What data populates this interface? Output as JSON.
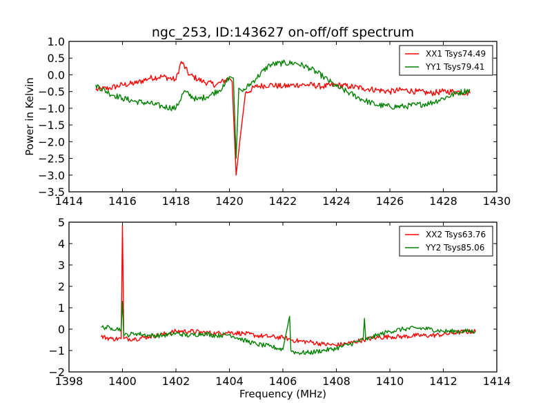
{
  "chart_data": [
    {
      "type": "line",
      "title": "ngc_253, ID:143627 on-off/off spectrum",
      "xlabel": "",
      "ylabel": "Power in Kelvin",
      "xlim": [
        1414,
        1430
      ],
      "ylim": [
        -3.5,
        1.0
      ],
      "xticks": [
        "1414",
        "1416",
        "1418",
        "1420",
        "1422",
        "1424",
        "1426",
        "1428",
        "1430"
      ],
      "yticks": [
        "1.0",
        "0.5",
        "0.0",
        "−0.5",
        "−1.0",
        "−1.5",
        "−2.0",
        "−2.5",
        "−3.0",
        "−3.5"
      ],
      "ytick_values": [
        1.0,
        0.5,
        0.0,
        -0.5,
        -1.0,
        -1.5,
        -2.0,
        -2.5,
        -3.0,
        -3.5
      ],
      "xtick_values": [
        1414,
        1416,
        1418,
        1420,
        1422,
        1424,
        1426,
        1428,
        1430
      ],
      "legend_position": "top-right",
      "grid": false,
      "series": [
        {
          "name": "XX1 Tsys74.49",
          "color": "#ff0000",
          "x": [
            1415.0,
            1415.5,
            1416.0,
            1416.5,
            1417.0,
            1417.5,
            1418.0,
            1418.2,
            1418.5,
            1419.0,
            1419.5,
            1420.0,
            1420.1,
            1420.25,
            1420.4,
            1420.6,
            1421.0,
            1421.5,
            1422.0,
            1422.5,
            1423.0,
            1423.5,
            1424.0,
            1424.5,
            1425.0,
            1425.5,
            1426.0,
            1426.5,
            1427.0,
            1427.5,
            1428.0,
            1428.5,
            1429.0
          ],
          "y": [
            -0.45,
            -0.4,
            -0.3,
            -0.25,
            -0.1,
            -0.05,
            -0.15,
            0.4,
            0.0,
            -0.2,
            -0.3,
            -0.1,
            -0.2,
            -3.0,
            -1.9,
            -0.55,
            -0.35,
            -0.3,
            -0.35,
            -0.3,
            -0.3,
            -0.35,
            -0.3,
            -0.35,
            -0.4,
            -0.45,
            -0.5,
            -0.45,
            -0.5,
            -0.55,
            -0.5,
            -0.5,
            -0.55
          ]
        },
        {
          "name": "YY1 Tsys79.41",
          "color": "#008000",
          "x": [
            1415.0,
            1415.5,
            1416.0,
            1416.5,
            1417.0,
            1417.5,
            1418.0,
            1418.3,
            1418.8,
            1419.3,
            1419.8,
            1420.0,
            1420.15,
            1420.25,
            1420.35,
            1420.5,
            1421.0,
            1421.5,
            1422.0,
            1422.5,
            1423.0,
            1423.5,
            1424.0,
            1424.5,
            1425.0,
            1425.5,
            1426.0,
            1426.5,
            1427.0,
            1427.5,
            1428.0,
            1428.5,
            1429.0
          ],
          "y": [
            -0.3,
            -0.55,
            -0.7,
            -0.8,
            -0.85,
            -0.95,
            -1.0,
            -0.5,
            -0.75,
            -0.6,
            -0.35,
            -0.05,
            -0.1,
            -2.5,
            -0.4,
            -0.5,
            -0.1,
            0.3,
            0.35,
            0.35,
            0.2,
            -0.05,
            -0.35,
            -0.55,
            -0.75,
            -0.9,
            -0.95,
            -0.95,
            -0.9,
            -0.85,
            -0.7,
            -0.55,
            -0.45
          ]
        }
      ]
    },
    {
      "type": "line",
      "title": "",
      "xlabel": "Frequency (MHz)",
      "ylabel": "",
      "xlim": [
        1398,
        1414
      ],
      "ylim": [
        -2,
        5
      ],
      "xticks": [
        "1398",
        "1400",
        "1402",
        "1404",
        "1406",
        "1408",
        "1410",
        "1412",
        "1414"
      ],
      "yticks": [
        "5",
        "4",
        "3",
        "2",
        "1",
        "0",
        "−1",
        "−2"
      ],
      "ytick_values": [
        5,
        4,
        3,
        2,
        1,
        0,
        -1,
        -2
      ],
      "xtick_values": [
        1398,
        1400,
        1402,
        1404,
        1406,
        1408,
        1410,
        1412,
        1414
      ],
      "legend_position": "top-right",
      "grid": false,
      "series": [
        {
          "name": "XX2 Tsys63.76",
          "color": "#ff0000",
          "x": [
            1399.2,
            1399.6,
            1399.95,
            1400.0,
            1400.05,
            1400.5,
            1401.0,
            1401.5,
            1402.0,
            1402.5,
            1403.0,
            1403.5,
            1404.0,
            1404.5,
            1405.0,
            1405.5,
            1406.0,
            1406.5,
            1407.0,
            1407.5,
            1408.0,
            1408.5,
            1409.0,
            1409.5,
            1410.0,
            1410.5,
            1411.0,
            1411.5,
            1412.0,
            1412.5,
            1413.2
          ],
          "y": [
            -0.35,
            -0.45,
            -0.45,
            4.85,
            -0.45,
            -0.45,
            -0.35,
            -0.25,
            -0.1,
            -0.1,
            -0.15,
            -0.2,
            -0.15,
            -0.2,
            -0.3,
            -0.35,
            -0.4,
            -0.55,
            -0.6,
            -0.7,
            -0.75,
            -0.65,
            -0.5,
            -0.4,
            -0.35,
            -0.35,
            -0.3,
            -0.3,
            -0.25,
            -0.15,
            -0.1
          ]
        },
        {
          "name": "YY2 Tsys85.06",
          "color": "#008000",
          "x": [
            1399.2,
            1399.6,
            1399.95,
            1400.0,
            1400.05,
            1400.5,
            1401.0,
            1401.5,
            1402.0,
            1402.5,
            1403.0,
            1403.5,
            1404.0,
            1404.5,
            1405.0,
            1405.5,
            1406.0,
            1406.25,
            1406.3,
            1406.5,
            1407.0,
            1407.5,
            1408.0,
            1408.5,
            1409.0,
            1409.05,
            1409.1,
            1409.5,
            1410.0,
            1410.5,
            1411.0,
            1411.5,
            1412.0,
            1412.5,
            1413.2
          ],
          "y": [
            0.1,
            0.05,
            0.0,
            1.3,
            -0.3,
            -0.2,
            -0.3,
            -0.3,
            -0.2,
            -0.3,
            -0.2,
            -0.3,
            -0.25,
            -0.5,
            -0.7,
            -0.8,
            -0.95,
            0.6,
            -1.0,
            -1.1,
            -1.1,
            -1.0,
            -0.9,
            -0.7,
            -0.5,
            0.5,
            -0.5,
            -0.3,
            -0.1,
            0.0,
            0.05,
            0.0,
            -0.1,
            -0.1,
            -0.1
          ]
        }
      ]
    }
  ]
}
